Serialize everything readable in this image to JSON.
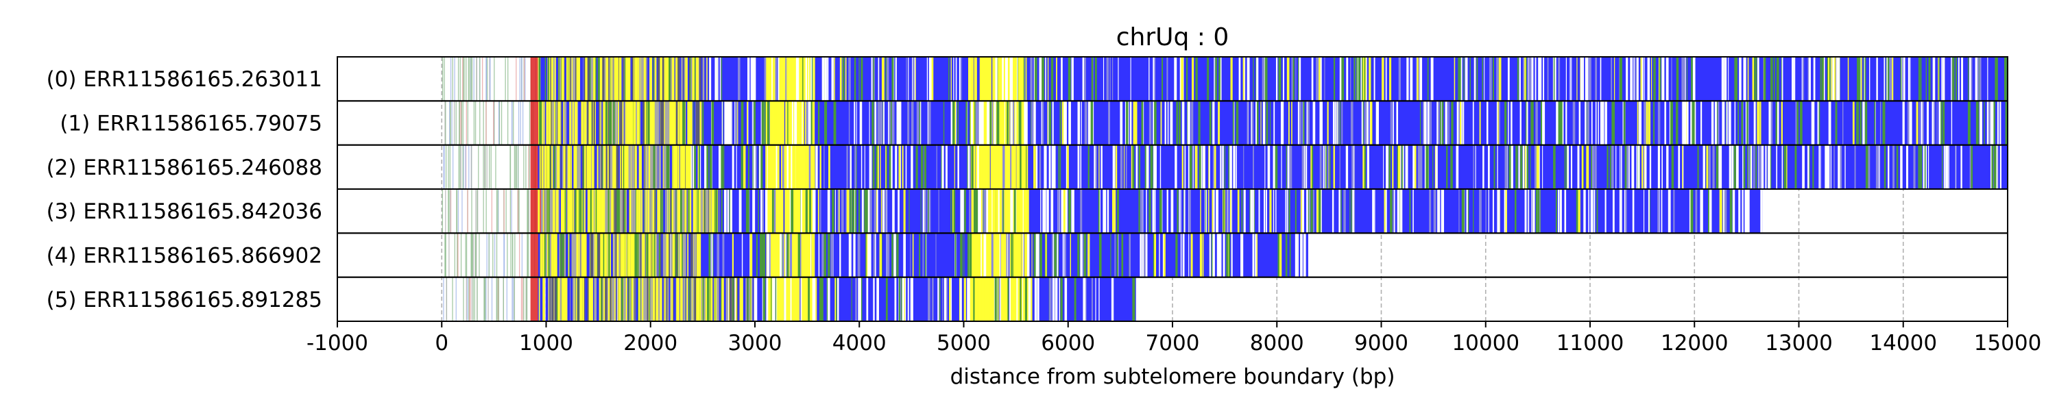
{
  "chart_data": {
    "type": "heatmap",
    "title": "chrUq : 0",
    "xlabel": "distance from subtelomere boundary (bp)",
    "ylabel": "",
    "xlim": [
      -1000,
      15000
    ],
    "xticks": [
      -1000,
      0,
      1000,
      2000,
      3000,
      4000,
      5000,
      6000,
      7000,
      8000,
      9000,
      10000,
      11000,
      12000,
      13000,
      14000,
      15000
    ],
    "xtick_labels": [
      "-1000",
      "0",
      "1000",
      "2000",
      "3000",
      "4000",
      "5000",
      "6000",
      "7000",
      "8000",
      "9000",
      "10000",
      "11000",
      "12000",
      "13000",
      "14000",
      "15000"
    ],
    "grid": "vertical dashed at x ticks",
    "rows": [
      {
        "label": "(0) ERR11586165.263011",
        "end": 15000,
        "dense_start": 2500
      },
      {
        "label": "(1) ERR11586165.79075",
        "end": 15000,
        "dense_start": 2500
      },
      {
        "label": "(2) ERR11586165.246088",
        "end": 15000,
        "dense_start": 2400
      },
      {
        "label": "(3) ERR11586165.842036",
        "end": 12650,
        "dense_start": 2600
      },
      {
        "label": "(4) ERR11586165.866902",
        "end": 8300,
        "dense_start": 2500
      },
      {
        "label": "(5) ERR11586165.891285",
        "end": 6650,
        "dense_start": 3000
      }
    ],
    "segments": [
      {
        "name": "sparse repeat",
        "from": 0,
        "to": 900,
        "color": "#8fbc8f"
      },
      {
        "name": "boundary",
        "from": 850,
        "to": 950,
        "color": "#dd2222"
      },
      {
        "name": "mixed",
        "from": 900,
        "to": 2500,
        "color": "#c8c864"
      },
      {
        "name": "yellow band 1",
        "from": 3100,
        "to": 3550,
        "color": "#ffff33"
      },
      {
        "name": "yellow band 2",
        "from": 5050,
        "to": 5600,
        "color": "#ffff33"
      },
      {
        "name": "blue",
        "from": 2500,
        "to": 15000,
        "color": "#3333ff"
      }
    ],
    "colors": {
      "blue": "#3333ff",
      "yellow": "#ffff33",
      "green": "#4a9a3a",
      "red": "#dd2222",
      "white": "#ffffff"
    }
  }
}
